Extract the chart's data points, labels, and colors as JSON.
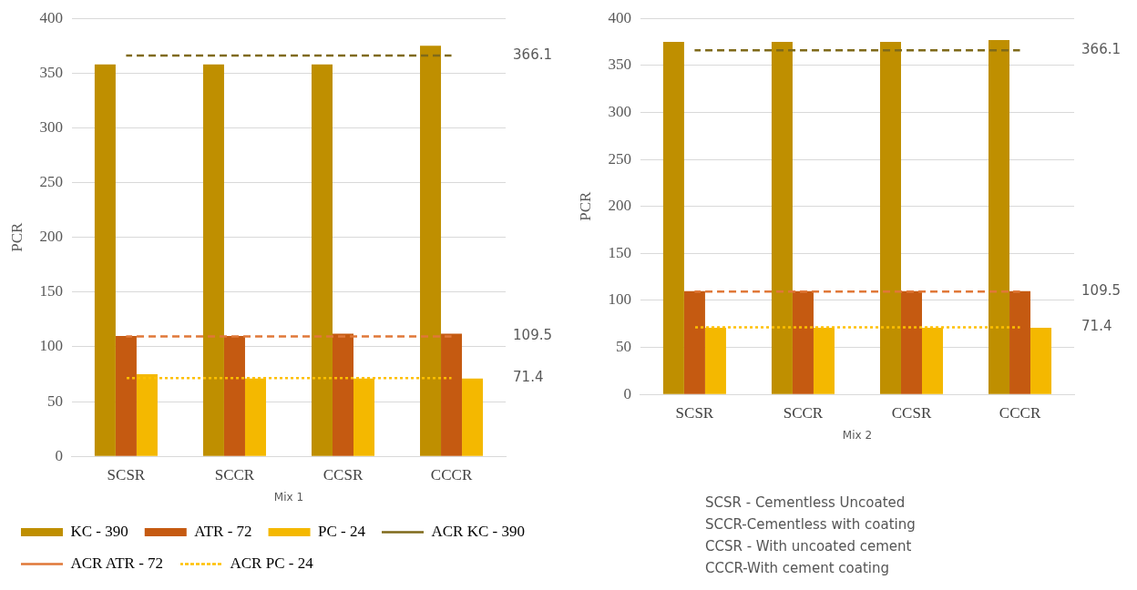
{
  "chart_data": [
    {
      "type": "bar",
      "xlabel": "Mix 1",
      "ylabel": "PCR",
      "categories": [
        "SCSR",
        "SCCR",
        "CCSR",
        "CCCR"
      ],
      "ylim": [
        0,
        400
      ],
      "yticks": [
        0,
        50,
        100,
        150,
        200,
        250,
        300,
        350,
        400
      ],
      "grid": "y",
      "legend": "bottom",
      "marker": "none",
      "series": [
        {
          "name": "KC - 390",
          "color": "#bf8f00",
          "values": [
            358,
            358,
            358,
            375
          ]
        },
        {
          "name": "ATR - 72",
          "color": "#c55a11",
          "values": [
            110,
            110,
            112,
            112
          ]
        },
        {
          "name": "PC - 24",
          "color": "#f4b800",
          "values": [
            75,
            71,
            71,
            71
          ]
        },
        {
          "name": "ACR KC - 390",
          "type": "line",
          "axis": "y2",
          "line_style": "dashed",
          "color": "#7f6a1a",
          "values": [
            366.1,
            366.1,
            366.1,
            366.1
          ]
        },
        {
          "name": "ACR ATR - 72",
          "type": "line",
          "axis": "y2",
          "line_style": "dashed",
          "color": "#e07838",
          "values": [
            109.5,
            109.5,
            109.5,
            109.5
          ]
        },
        {
          "name": "ACR PC - 24",
          "type": "line",
          "axis": "y2",
          "line_style": "dotted",
          "color": "#ffc000",
          "values": [
            71.4,
            71.4,
            71.4,
            71.4
          ]
        }
      ],
      "y2lim": [
        0,
        400
      ],
      "y2ticks": [
        71.4,
        109.5,
        366.1
      ]
    },
    {
      "type": "bar",
      "xlabel": "Mix 2",
      "ylabel": "PCR",
      "categories": [
        "SCSR",
        "SCCR",
        "CCSR",
        "CCCR"
      ],
      "ylim": [
        0,
        400
      ],
      "yticks": [
        0,
        50,
        100,
        150,
        200,
        250,
        300,
        350,
        400
      ],
      "grid": "y",
      "legend": false,
      "marker": "none",
      "series": [
        {
          "color": "#bf8f00",
          "values": [
            375,
            375,
            375,
            377
          ]
        },
        {
          "color": "#c55a11",
          "values": [
            110,
            110,
            110,
            110
          ]
        },
        {
          "color": "#f4b800",
          "values": [
            71,
            71,
            71,
            71
          ]
        },
        {
          "type": "line",
          "axis": "y2",
          "line_style": "dashed",
          "color": "#7f6a1a",
          "values": [
            366.1,
            366.1,
            366.1,
            366.1
          ]
        },
        {
          "type": "line",
          "axis": "y2",
          "line_style": "dashed",
          "color": "#e07838",
          "values": [
            109.5,
            109.5,
            109.5,
            109.5
          ]
        },
        {
          "type": "line",
          "axis": "y2",
          "line_style": "dotted",
          "color": "#ffc000",
          "values": [
            71.4,
            71.4,
            71.4,
            71.4
          ]
        }
      ],
      "y2lim": [
        0,
        400
      ],
      "y2ticks": [
        71.4,
        109.5,
        366.1
      ],
      "annotations": [
        "SCSR - Cementless Uncoated",
        "SCCR-Cementless with coating",
        "CCSR - With uncoated cement",
        "CCCR-With cement coating"
      ]
    }
  ]
}
